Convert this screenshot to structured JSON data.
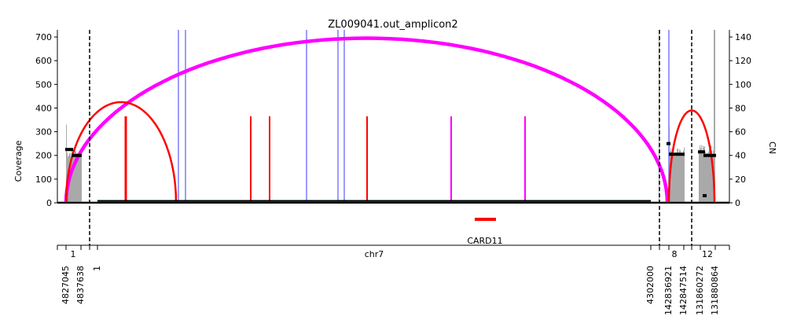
{
  "chart_data": {
    "type": "amplicon-coverage",
    "title": "ZL009041.out_amplicon2",
    "ylabel_left": "Coverage",
    "ylabel_right": "CN",
    "ylim_left": [
      0,
      730
    ],
    "ylim_right": [
      0,
      146
    ],
    "yticks_left": [
      "0",
      "100",
      "200",
      "300",
      "400",
      "500",
      "600",
      "700"
    ],
    "yticks_left_values": [
      0,
      100,
      200,
      300,
      400,
      500,
      600,
      700
    ],
    "yticks_right": [
      "0",
      "20",
      "40",
      "60",
      "80",
      "100",
      "120",
      "140"
    ],
    "yticks_right_values": [
      0,
      20,
      40,
      60,
      80,
      100,
      120,
      140
    ],
    "chromosome_labels": [
      "1",
      "chr7",
      "8",
      "12"
    ],
    "position_ticks": [
      "4827045",
      "4837638",
      "1",
      "4302000",
      "142836921",
      "142847514",
      "131860272",
      "131880864"
    ],
    "gene_label": "CARD11",
    "segments": [
      {
        "chrom": "1",
        "start": 4827045,
        "end": 4837638
      },
      {
        "chrom": "chr7",
        "start": 1,
        "end": 4302000
      },
      {
        "chrom": "8",
        "start": 142836921,
        "end": 142847514
      },
      {
        "chrom": "12",
        "start": 131860272,
        "end": 131880864
      }
    ],
    "copy_number_segments": [
      {
        "chrom": "1",
        "cn": 45
      },
      {
        "chrom": "1",
        "cn": 40
      },
      {
        "chrom": "chr7",
        "cn": 1
      },
      {
        "chrom": "8",
        "cn": 50
      },
      {
        "chrom": "8",
        "cn": 41
      },
      {
        "chrom": "12",
        "cn": 43
      },
      {
        "chrom": "12",
        "cn": 40
      },
      {
        "chrom": "12",
        "cn": 6
      }
    ],
    "breakpoint_arcs": [
      {
        "color": "#ff00ff",
        "type": "long-range"
      },
      {
        "color": "#ff0000",
        "type": "local"
      },
      {
        "color": "#ff0000",
        "type": "local"
      }
    ],
    "colors": {
      "coverage": "#a9a9a9",
      "copy_number": "#000000",
      "red": "#ff0000",
      "magenta": "#ff00ff",
      "blue": "#7b7bff",
      "gene": "#ff0000"
    },
    "grid": false,
    "legend": "none"
  }
}
